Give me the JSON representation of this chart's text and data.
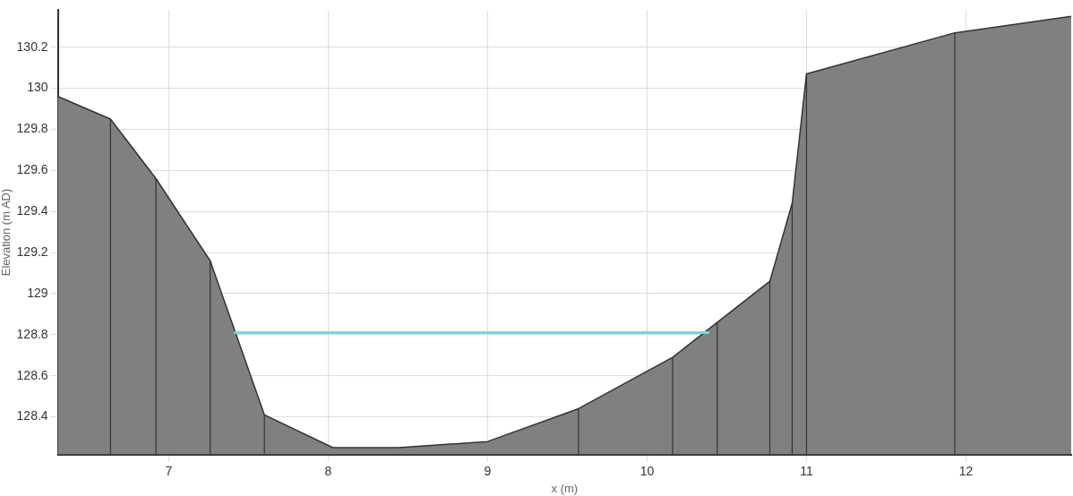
{
  "chart_data": {
    "type": "area",
    "xlabel": "x (m)",
    "ylabel": "Elevation (m AD)",
    "xlim": [
      6.305,
      12.66
    ],
    "ylim": [
      128.217,
      130.38
    ],
    "xticks": [
      7,
      8,
      9,
      10,
      11,
      12
    ],
    "yticks": [
      128.4,
      128.6,
      128.8,
      129,
      129.2,
      129.4,
      129.6,
      129.8,
      130,
      130.2
    ],
    "grid": true,
    "series": [
      {
        "color": "#808080",
        "x": [
          6.305,
          6.635,
          6.92,
          7.26,
          7.6,
          8.03,
          8.44,
          9.0,
          9.57,
          10.16,
          10.44,
          10.77,
          10.91,
          11.0,
          11.93,
          12.66
        ],
        "values": [
          129.96,
          129.85,
          129.56,
          129.16,
          128.41,
          128.25,
          128.25,
          128.28,
          128.44,
          128.69,
          128.86,
          129.06,
          129.44,
          130.07,
          130.27,
          130.35
        ]
      },
      {
        "type": "line",
        "color": "#7fd4d4",
        "x": [
          7.41,
          8,
          9,
          10,
          10.39
        ],
        "values": [
          128.81,
          128.81,
          128.81,
          128.81,
          128.81
        ]
      }
    ],
    "ref_lines": [
      {
        "axis": "x",
        "value": 6.635,
        "color": "#333333"
      },
      {
        "axis": "x",
        "value": 6.92,
        "color": "#333333"
      },
      {
        "axis": "x",
        "value": 7.26,
        "color": "#333333"
      },
      {
        "axis": "x",
        "value": 7.6,
        "color": "#333333"
      },
      {
        "axis": "x",
        "value": 9.57,
        "color": "#333333"
      },
      {
        "axis": "x",
        "value": 10.16,
        "color": "#333333"
      },
      {
        "axis": "x",
        "value": 10.44,
        "color": "#333333"
      },
      {
        "axis": "x",
        "value": 10.77,
        "color": "#333333"
      },
      {
        "axis": "x",
        "value": 10.91,
        "color": "#333333"
      },
      {
        "axis": "x",
        "value": 11.0,
        "color": "#333333"
      },
      {
        "axis": "x",
        "value": 11.93,
        "color": "#333333"
      }
    ]
  }
}
